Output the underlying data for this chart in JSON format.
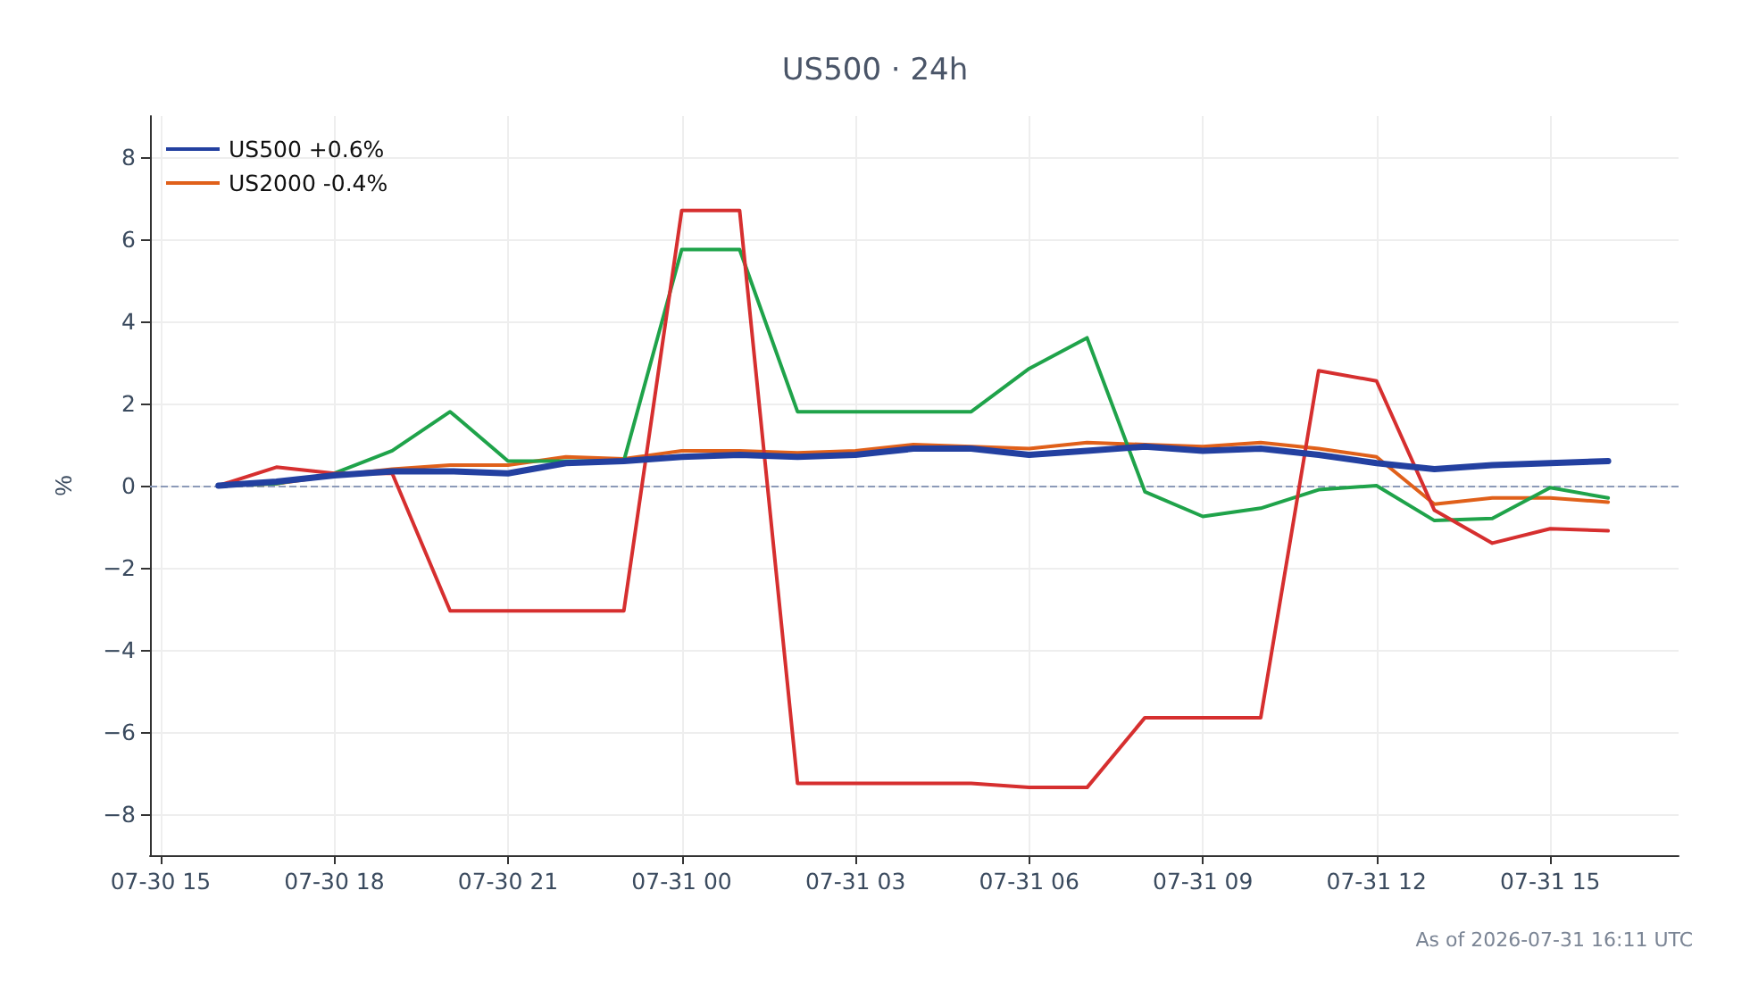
{
  "chart_data": {
    "type": "line",
    "title": "US500 · 24h",
    "ylabel": "%",
    "x": [
      "2026-07-30T16:00",
      "2026-07-30T17:00",
      "2026-07-30T18:00",
      "2026-07-30T19:00",
      "2026-07-30T20:00",
      "2026-07-30T21:00",
      "2026-07-30T22:00",
      "2026-07-30T23:00",
      "2026-07-31T00:00",
      "2026-07-31T01:00",
      "2026-07-31T02:00",
      "2026-07-31T03:00",
      "2026-07-31T04:00",
      "2026-07-31T05:00",
      "2026-07-31T06:00",
      "2026-07-31T07:00",
      "2026-07-31T08:00",
      "2026-07-31T09:00",
      "2026-07-31T10:00",
      "2026-07-31T11:00",
      "2026-07-31T12:00",
      "2026-07-31T13:00",
      "2026-07-31T14:00",
      "2026-07-31T15:00",
      "2026-07-31T16:00"
    ],
    "series": [
      {
        "name": "US500 +0.6%",
        "color": "#2340a0",
        "values": [
          0,
          0.1,
          0.25,
          0.35,
          0.35,
          0.3,
          0.55,
          0.6,
          0.7,
          0.75,
          0.7,
          0.75,
          0.9,
          0.9,
          0.75,
          0.85,
          0.95,
          0.85,
          0.9,
          0.75,
          0.55,
          0.4,
          0.5,
          0.55,
          0.6
        ]
      },
      {
        "color": "#d62f2f",
        "values": [
          0,
          0.45,
          0.3,
          0.3,
          -3.05,
          -3.05,
          -3.05,
          -3.05,
          6.7,
          6.7,
          -7.25,
          -7.25,
          -7.25,
          -7.25,
          -7.35,
          -7.35,
          -5.65,
          -5.65,
          -5.65,
          2.8,
          2.55,
          -0.6,
          -1.4,
          -1.05,
          -1.1
        ]
      },
      {
        "color": "#1fa34a",
        "values": [
          0,
          0.05,
          0.3,
          0.85,
          1.8,
          0.6,
          0.6,
          0.6,
          5.75,
          5.75,
          1.8,
          1.8,
          1.8,
          1.8,
          2.85,
          3.6,
          -0.15,
          -0.75,
          -0.55,
          -0.1,
          0,
          -0.85,
          -0.8,
          -0.05,
          -0.3
        ]
      },
      {
        "name": "US2000 -0.4%",
        "color": "#e0601a",
        "values": [
          0,
          0.05,
          0.25,
          0.4,
          0.5,
          0.5,
          0.7,
          0.65,
          0.85,
          0.85,
          0.8,
          0.85,
          1.0,
          0.95,
          0.9,
          1.05,
          1.0,
          0.95,
          1.05,
          0.9,
          0.7,
          -0.45,
          -0.3,
          -0.3,
          -0.4
        ]
      }
    ],
    "xlim": [
      "2026-07-30T14:49",
      "2026-07-31T17:13"
    ],
    "xticks": [
      {
        "value": "2026-07-30T15:00",
        "label": "07-30 15"
      },
      {
        "value": "2026-07-30T18:00",
        "label": "07-30 18"
      },
      {
        "value": "2026-07-30T21:00",
        "label": "07-30 21"
      },
      {
        "value": "2026-07-31T00:00",
        "label": "07-31 00"
      },
      {
        "value": "2026-07-31T03:00",
        "label": "07-31 03"
      },
      {
        "value": "2026-07-31T06:00",
        "label": "07-31 06"
      },
      {
        "value": "2026-07-31T09:00",
        "label": "07-31 09"
      },
      {
        "value": "2026-07-31T12:00",
        "label": "07-31 12"
      },
      {
        "value": "2026-07-31T15:00",
        "label": "07-31 15"
      }
    ],
    "ylim": [
      -9,
      9
    ],
    "yticks": [
      {
        "value": -8,
        "label": "−8"
      },
      {
        "value": -6,
        "label": "−6"
      },
      {
        "value": -4,
        "label": "−4"
      },
      {
        "value": -2,
        "label": "−2"
      },
      0,
      2,
      4,
      6,
      8
    ],
    "ref_lines": [
      {
        "axis": "y",
        "value": 0,
        "color": "#8c9ab8",
        "line_style": "dashed"
      }
    ],
    "grid": true,
    "legend": "top left",
    "marker": "none",
    "line_style": "solid",
    "annotations": [
      "As of 2026-07-31 16:11 UTC"
    ]
  }
}
